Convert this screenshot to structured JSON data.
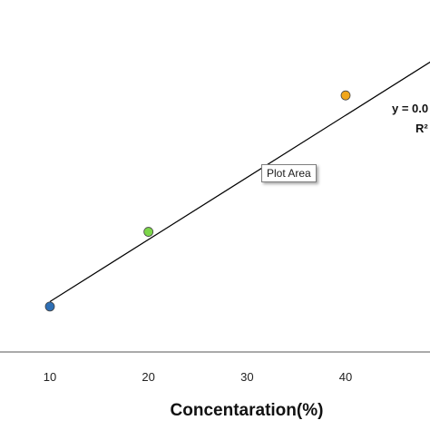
{
  "chart_data": {
    "type": "scatter",
    "xlabel": "Concentaration(%)",
    "ylabel": "",
    "xlim": [
      0,
      50
    ],
    "ylim": [
      0,
      1
    ],
    "x_ticks": [
      "10",
      "20",
      "30",
      "40"
    ],
    "x_tick_values": [
      10,
      20,
      30,
      40
    ],
    "points": [
      {
        "x": 10,
        "y": 0.14,
        "color": "#2e6fb5"
      },
      {
        "x": 20,
        "y": 0.37,
        "color": "#7dd64a"
      },
      {
        "x": 40,
        "y": 0.79,
        "color": "#f0a61c"
      }
    ],
    "trendline": {
      "x0": 10,
      "y0": 0.155,
      "x1": 50,
      "y1": 0.92,
      "color": "#000000"
    },
    "equation_line1": "y = 0.0",
    "equation_line2": "R²",
    "tooltip": "Plot Area",
    "grid": false
  }
}
